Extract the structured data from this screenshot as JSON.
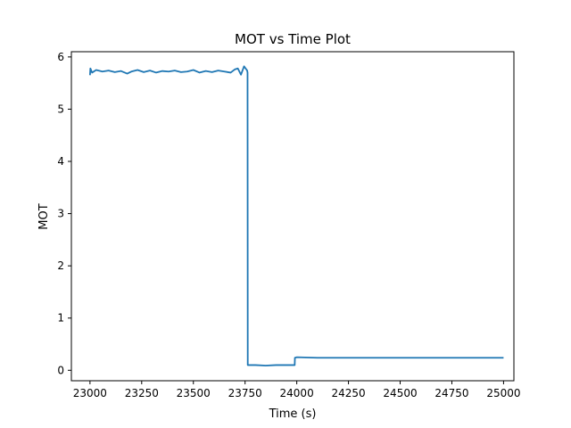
{
  "chart_data": {
    "type": "line",
    "title": "MOT vs Time Plot",
    "xlabel": "Time (s)",
    "ylabel": "MOT",
    "xlim": [
      22910,
      25050
    ],
    "ylim": [
      -0.2,
      6.1
    ],
    "grid": false,
    "legend": "none",
    "xticks": [
      23000,
      23250,
      23500,
      23750,
      24000,
      24250,
      24500,
      24750,
      25000
    ],
    "yticks": [
      0,
      1,
      2,
      3,
      4,
      5,
      6
    ],
    "line_color": "#1f77b4",
    "series": [
      {
        "x": [
          23000,
          23002,
          23010,
          23030,
          23060,
          23090,
          23120,
          23150,
          23180,
          23200,
          23230,
          23260,
          23290,
          23320,
          23350,
          23380,
          23410,
          23440,
          23470,
          23500,
          23530,
          23560,
          23590,
          23620,
          23650,
          23680,
          23700,
          23715,
          23730,
          23745,
          23760,
          23762,
          23763,
          23800,
          23850,
          23900,
          23950,
          23990,
          23991,
          24000,
          24100,
          24250,
          24500,
          24750,
          25000
        ],
        "y": [
          5.65,
          5.78,
          5.7,
          5.75,
          5.72,
          5.74,
          5.71,
          5.73,
          5.68,
          5.72,
          5.75,
          5.71,
          5.74,
          5.7,
          5.73,
          5.72,
          5.74,
          5.71,
          5.72,
          5.75,
          5.7,
          5.73,
          5.71,
          5.74,
          5.72,
          5.7,
          5.76,
          5.78,
          5.66,
          5.82,
          5.74,
          5.7,
          0.1,
          0.1,
          0.09,
          0.1,
          0.1,
          0.1,
          0.24,
          0.25,
          0.24,
          0.24,
          0.24,
          0.24,
          0.24
        ]
      }
    ]
  }
}
